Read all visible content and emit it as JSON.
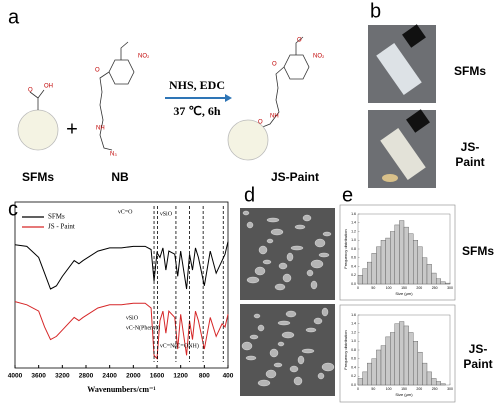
{
  "panel_labels": [
    "a",
    "b",
    "c",
    "d",
    "e"
  ],
  "panel_a": {
    "reactant1": "SFMs",
    "plus": "+",
    "reactant2": "NB",
    "conditions_top": "NHS, EDC",
    "conditions_bottom": "37 ℃, 6h",
    "product": "JS-Paint",
    "atoms": [
      "OH",
      "O",
      "NO₂",
      "O",
      "N₃",
      "NH",
      "O",
      "NO₂",
      "O",
      "NH",
      "O"
    ]
  },
  "panel_b": {
    "label_top": "SFMs",
    "label_bottom": [
      "JS-",
      "Paint"
    ]
  },
  "panel_e": {
    "label_top": "SFMs",
    "label_bottom": [
      "JS-",
      "Paint"
    ]
  },
  "chart_data": [
    {
      "type": "line",
      "xlabel": "Wavenumbers/cm⁻¹",
      "x": [
        4000,
        3800,
        3600,
        3500,
        3400,
        3300,
        3200,
        3000,
        2920,
        2850,
        2600,
        2400,
        2200,
        2000,
        1800,
        1700,
        1650,
        1600,
        1550,
        1500,
        1450,
        1400,
        1300,
        1250,
        1200,
        1100,
        1050,
        1000,
        950,
        900,
        800,
        700,
        600,
        500,
        450,
        400
      ],
      "xlim": [
        4000,
        400
      ],
      "xticks": [
        4000,
        3600,
        3200,
        2800,
        2400,
        2000,
        1600,
        1200,
        800,
        400
      ],
      "ylim": [
        0,
        100
      ],
      "series": [
        {
          "name": "SFMs",
          "color": "#000000",
          "values": [
            78,
            77,
            70,
            60,
            50,
            52,
            58,
            68,
            66,
            68,
            74,
            76,
            76,
            77,
            77,
            75,
            55,
            73,
            70,
            76,
            62,
            74,
            72,
            58,
            74,
            50,
            72,
            62,
            76,
            70,
            52,
            74,
            60,
            68,
            72,
            80
          ]
        },
        {
          "name": "JS - Paint",
          "color": "#d62728",
          "values": [
            42,
            40,
            36,
            26,
            18,
            20,
            24,
            32,
            30,
            32,
            38,
            40,
            40,
            41,
            41,
            38,
            8,
            6,
            30,
            36,
            22,
            36,
            32,
            12,
            34,
            8,
            30,
            18,
            36,
            30,
            12,
            32,
            20,
            28,
            26,
            34
          ]
        }
      ],
      "annotations": [
        "νC=O",
        "νSiO",
        "νSiO",
        "νC-N(Phenyl)",
        "νC=N(C=ONH)"
      ]
    },
    {
      "type": "histogram",
      "xlabel": "Size (μm)",
      "ylabel": "Frequency distribution",
      "bins": [
        0,
        15,
        30,
        45,
        60,
        75,
        90,
        105,
        120,
        135,
        150,
        165,
        180,
        195,
        210,
        225,
        240,
        255,
        270,
        285,
        300
      ],
      "values": [
        0.2,
        0.35,
        0.5,
        0.7,
        0.85,
        1.0,
        1.05,
        1.2,
        1.35,
        1.45,
        1.3,
        1.15,
        1.0,
        0.85,
        0.6,
        0.45,
        0.25,
        0.12,
        0.05,
        0.02
      ],
      "color": "#c8c8c8",
      "xlim": [
        0,
        300
      ],
      "xticks": [
        0,
        50,
        100,
        150,
        200,
        250,
        300
      ],
      "ylim": [
        0,
        1.6
      ],
      "yticks": [
        {
          "value": 0,
          "label": "0.0"
        },
        0.2,
        0.4,
        0.6,
        0.8,
        {
          "value": 1,
          "label": "1.0"
        },
        1.2,
        1.4,
        1.6
      ]
    },
    {
      "type": "histogram",
      "xlabel": "Size (μm)",
      "ylabel": "Frequency distribution",
      "bins": [
        0,
        15,
        30,
        45,
        60,
        75,
        90,
        105,
        120,
        135,
        150,
        165,
        180,
        195,
        210,
        225,
        240,
        255,
        270,
        285,
        300
      ],
      "values": [
        0.15,
        0.3,
        0.5,
        0.6,
        0.8,
        0.9,
        1.1,
        1.2,
        1.4,
        1.45,
        1.35,
        1.2,
        1.0,
        0.75,
        0.5,
        0.3,
        0.15,
        0.08,
        0.03,
        0.0
      ],
      "color": "#c8c8c8",
      "xlim": [
        0,
        300
      ],
      "xticks": [
        0,
        50,
        100,
        150,
        200,
        250,
        300
      ],
      "ylim": [
        0,
        1.6
      ],
      "yticks": [
        {
          "value": 0,
          "label": "0.0"
        },
        0.2,
        0.4,
        0.6,
        0.8,
        {
          "value": 1,
          "label": "1.0"
        },
        1.2,
        1.4,
        1.6
      ]
    }
  ]
}
